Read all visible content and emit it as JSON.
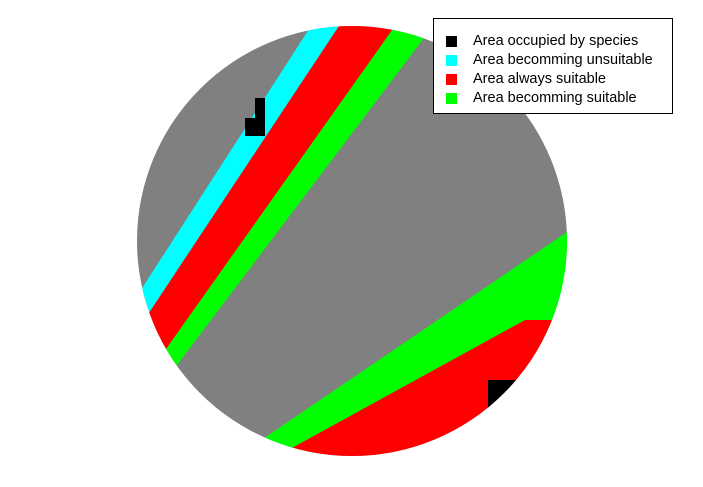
{
  "map": {
    "shape": "circular grid map",
    "colors": {
      "background": "#808080",
      "occupied": "#000000",
      "becoming_unsuitable": "#00ffff",
      "always_suitable": "#ff0000",
      "becoming_suitable": "#00ff00"
    }
  },
  "legend": {
    "placement": "top-right",
    "items": [
      {
        "label": "Area occupied by species",
        "color": "#000000"
      },
      {
        "label": "Area becomming unsuitable",
        "color": "#00ffff"
      },
      {
        "label": "Area always suitable",
        "color": "#ff0000"
      },
      {
        "label": "Area becomming suitable",
        "color": "#00ff00"
      }
    ]
  }
}
